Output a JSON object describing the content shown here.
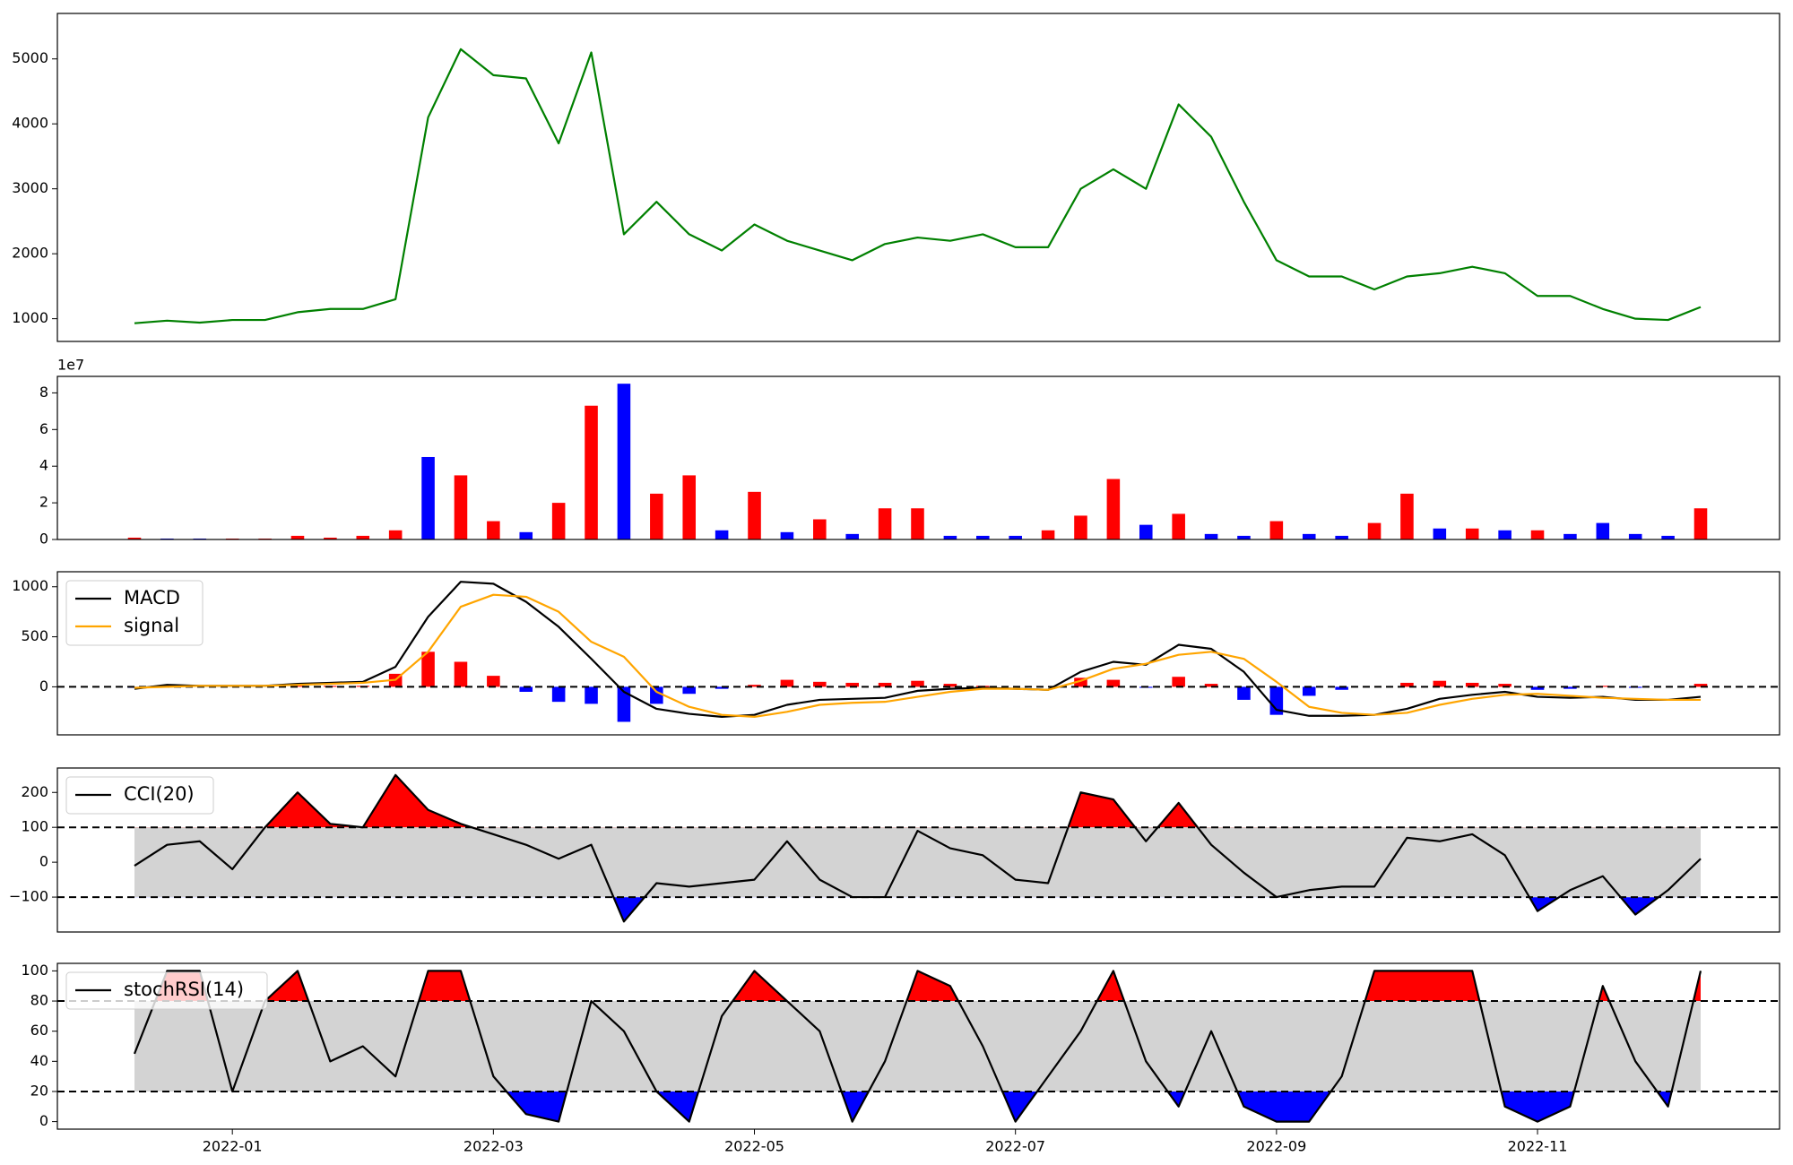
{
  "chart_data": [
    {
      "type": "line",
      "series": [
        {
          "color": "green",
          "values": [
            930,
            970,
            940,
            980,
            980,
            1100,
            1150,
            1150,
            1300,
            4100,
            5150,
            4750,
            4700,
            3700,
            5100,
            2300,
            2800,
            2300,
            2050,
            2450,
            2200,
            2050,
            1900,
            2150,
            2250,
            2200,
            2300,
            2100,
            2100,
            3000,
            3300,
            3000,
            4300,
            3800,
            2800,
            1900,
            1650,
            1650,
            1450,
            1650,
            1700,
            1800,
            1700,
            1350,
            1350,
            1150,
            1000,
            980,
            1180
          ]
        }
      ],
      "ylim": [
        650,
        5700
      ],
      "yticks": [
        1000,
        2000,
        3000,
        4000,
        5000
      ]
    },
    {
      "type": "bar",
      "offset_label": "1e7",
      "values": [
        0.1,
        0.05,
        0.05,
        0.05,
        0.05,
        0.2,
        0.1,
        0.2,
        0.5,
        4.5,
        3.5,
        1.0,
        0.4,
        2.0,
        7.3,
        8.5,
        2.5,
        3.5,
        0.5,
        2.6,
        0.4,
        1.1,
        0.3,
        1.7,
        1.7,
        0.2,
        0.2,
        0.2,
        0.5,
        1.3,
        3.3,
        0.8,
        1.4,
        0.3,
        0.2,
        1.0,
        0.3,
        0.2,
        0.9,
        2.5,
        0.6,
        0.6,
        0.5,
        0.5,
        0.3,
        0.9,
        0.3,
        0.2,
        1.7
      ],
      "colors": [
        "red",
        "blue",
        "blue",
        "red",
        "red",
        "red",
        "red",
        "red",
        "red",
        "blue",
        "red",
        "red",
        "blue",
        "red",
        "red",
        "blue",
        "red",
        "red",
        "blue",
        "red",
        "blue",
        "red",
        "blue",
        "red",
        "red",
        "blue",
        "blue",
        "blue",
        "red",
        "red",
        "red",
        "blue",
        "red",
        "blue",
        "blue",
        "red",
        "blue",
        "blue",
        "red",
        "red",
        "blue",
        "red",
        "blue",
        "red",
        "blue",
        "blue",
        "blue",
        "blue",
        "red"
      ],
      "ylim": [
        0,
        8.9
      ],
      "yticks": [
        0,
        2,
        4,
        6,
        8
      ]
    },
    {
      "type": "line",
      "legend": "upper left",
      "series": [
        {
          "name": "MACD",
          "color": "black",
          "values": [
            -20,
            20,
            10,
            10,
            10,
            30,
            40,
            50,
            200,
            700,
            1050,
            1030,
            850,
            600,
            280,
            -50,
            -220,
            -270,
            -300,
            -280,
            -180,
            -130,
            -120,
            -110,
            -40,
            -20,
            -10,
            -20,
            -30,
            150,
            250,
            220,
            420,
            380,
            150,
            -230,
            -290,
            -290,
            -280,
            -220,
            -120,
            -80,
            -50,
            -100,
            -110,
            -100,
            -130,
            -130,
            -100
          ]
        },
        {
          "name": "signal",
          "color": "orange",
          "values": [
            -10,
            0,
            10,
            10,
            10,
            20,
            30,
            40,
            70,
            350,
            800,
            920,
            900,
            750,
            450,
            300,
            -50,
            -200,
            -280,
            -300,
            -250,
            -180,
            -160,
            -150,
            -100,
            -50,
            -20,
            -20,
            -30,
            60,
            180,
            230,
            320,
            350,
            280,
            50,
            -200,
            -260,
            -280,
            -260,
            -180,
            -120,
            -80,
            -70,
            -90,
            -110,
            -120,
            -130,
            -130
          ]
        }
      ],
      "histogram": {
        "pos_color": "red",
        "neg_color": "blue",
        "values": [
          -10,
          20,
          0,
          0,
          0,
          10,
          10,
          10,
          130,
          350,
          250,
          110,
          -50,
          -150,
          -170,
          -350,
          -170,
          -70,
          -20,
          20,
          70,
          50,
          40,
          40,
          60,
          30,
          10,
          0,
          0,
          90,
          70,
          -10,
          100,
          30,
          -130,
          -280,
          -90,
          -30,
          0,
          40,
          60,
          40,
          30,
          -30,
          -20,
          10,
          -10,
          0,
          30
        ]
      },
      "levels": [
        0
      ],
      "ylim": [
        -480,
        1150
      ],
      "yticks": [
        0,
        500,
        1000
      ]
    },
    {
      "type": "line",
      "legend": "upper left",
      "series": [
        {
          "name": "CCI(20)",
          "color": "black",
          "values": [
            -10,
            50,
            60,
            -20,
            100,
            200,
            110,
            100,
            250,
            150,
            110,
            80,
            50,
            10,
            50,
            -170,
            -60,
            -70,
            -60,
            -50,
            60,
            -50,
            -100,
            -100,
            90,
            40,
            20,
            -50,
            -60,
            200,
            180,
            60,
            170,
            50,
            -30,
            -100,
            -80,
            -70,
            -70,
            70,
            60,
            80,
            20,
            -140,
            -80,
            -40,
            -150,
            -80,
            10
          ]
        }
      ],
      "levels": [
        -100,
        100
      ],
      "band_color": "lightgray",
      "upper_color": "red",
      "lower_color": "blue",
      "ylim": [
        -200,
        270
      ],
      "yticks": [
        {
          "value": -100,
          "label": "−100"
        },
        0,
        100,
        200
      ]
    },
    {
      "type": "line",
      "legend": "upper left",
      "series": [
        {
          "name": "stochRSI(14)",
          "color": "black",
          "values": [
            45,
            100,
            100,
            20,
            80,
            100,
            40,
            50,
            30,
            100,
            100,
            30,
            5,
            0,
            80,
            60,
            20,
            0,
            70,
            100,
            80,
            60,
            0,
            40,
            100,
            90,
            50,
            0,
            30,
            60,
            100,
            40,
            10,
            60,
            10,
            0,
            0,
            30,
            100,
            100,
            100,
            100,
            10,
            0,
            10,
            90,
            40,
            10,
            100
          ]
        }
      ],
      "levels": [
        20,
        80
      ],
      "band_color": "lightgray",
      "upper_color": "red",
      "lower_color": "blue",
      "ylim": [
        -5,
        105
      ],
      "yticks": [
        0,
        20,
        40,
        60,
        80,
        100
      ],
      "categories": [
        null,
        null,
        null,
        "2022-01",
        null,
        null,
        null,
        null,
        null,
        null,
        null,
        "2022-03",
        null,
        null,
        null,
        null,
        null,
        null,
        null,
        "2022-05",
        null,
        null,
        null,
        null,
        null,
        null,
        null,
        "2022-07",
        null,
        null,
        null,
        null,
        null,
        null,
        null,
        "2022-09",
        null,
        null,
        null,
        null,
        null,
        null,
        null,
        "2022-11",
        null,
        null,
        null,
        null,
        null
      ]
    }
  ]
}
